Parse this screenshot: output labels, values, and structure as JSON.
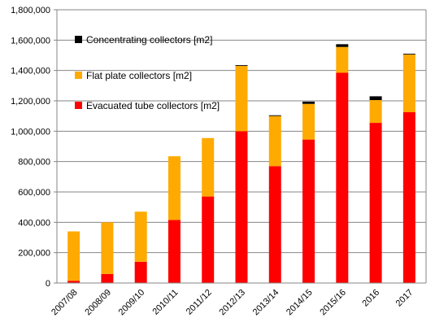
{
  "chart_data": {
    "type": "bar",
    "stacked": true,
    "categories": [
      "2007/08",
      "2008/09",
      "2009/10",
      "2010/11",
      "2011/12",
      "2012/13",
      "2013/14",
      "2014/15",
      "2015/16",
      "2016",
      "2017"
    ],
    "series": [
      {
        "name": "Evacuated tube collectors [m2]",
        "color": "#ff0000",
        "values": [
          15000,
          60000,
          140000,
          415000,
          570000,
          1000000,
          770000,
          945000,
          1385000,
          1055000,
          1125000
        ]
      },
      {
        "name": "Flat plate collectors [m2]",
        "color": "#ffaa00",
        "values": [
          325000,
          340000,
          330000,
          420000,
          385000,
          430000,
          330000,
          235000,
          170000,
          150000,
          380000
        ]
      },
      {
        "name": "Concentrating collectors [m2]",
        "color": "#000000",
        "values": [
          0,
          0,
          0,
          0,
          0,
          5000,
          5000,
          15000,
          18000,
          25000,
          5000
        ]
      }
    ],
    "yticks": [
      "0",
      "200,000",
      "400,000",
      "600,000",
      "800,000",
      "1,000,000",
      "1,200,000",
      "1,400,000",
      "1,600,000",
      "1,800,000"
    ],
    "ylim": [
      0,
      1800000
    ],
    "ystep": 200000,
    "grid": true,
    "legend_position": "top-left, inside plot",
    "legend_order": [
      "Concentrating collectors [m2]",
      "Flat plate collectors [m2]",
      "Evacuated tube collectors [m2]"
    ]
  }
}
